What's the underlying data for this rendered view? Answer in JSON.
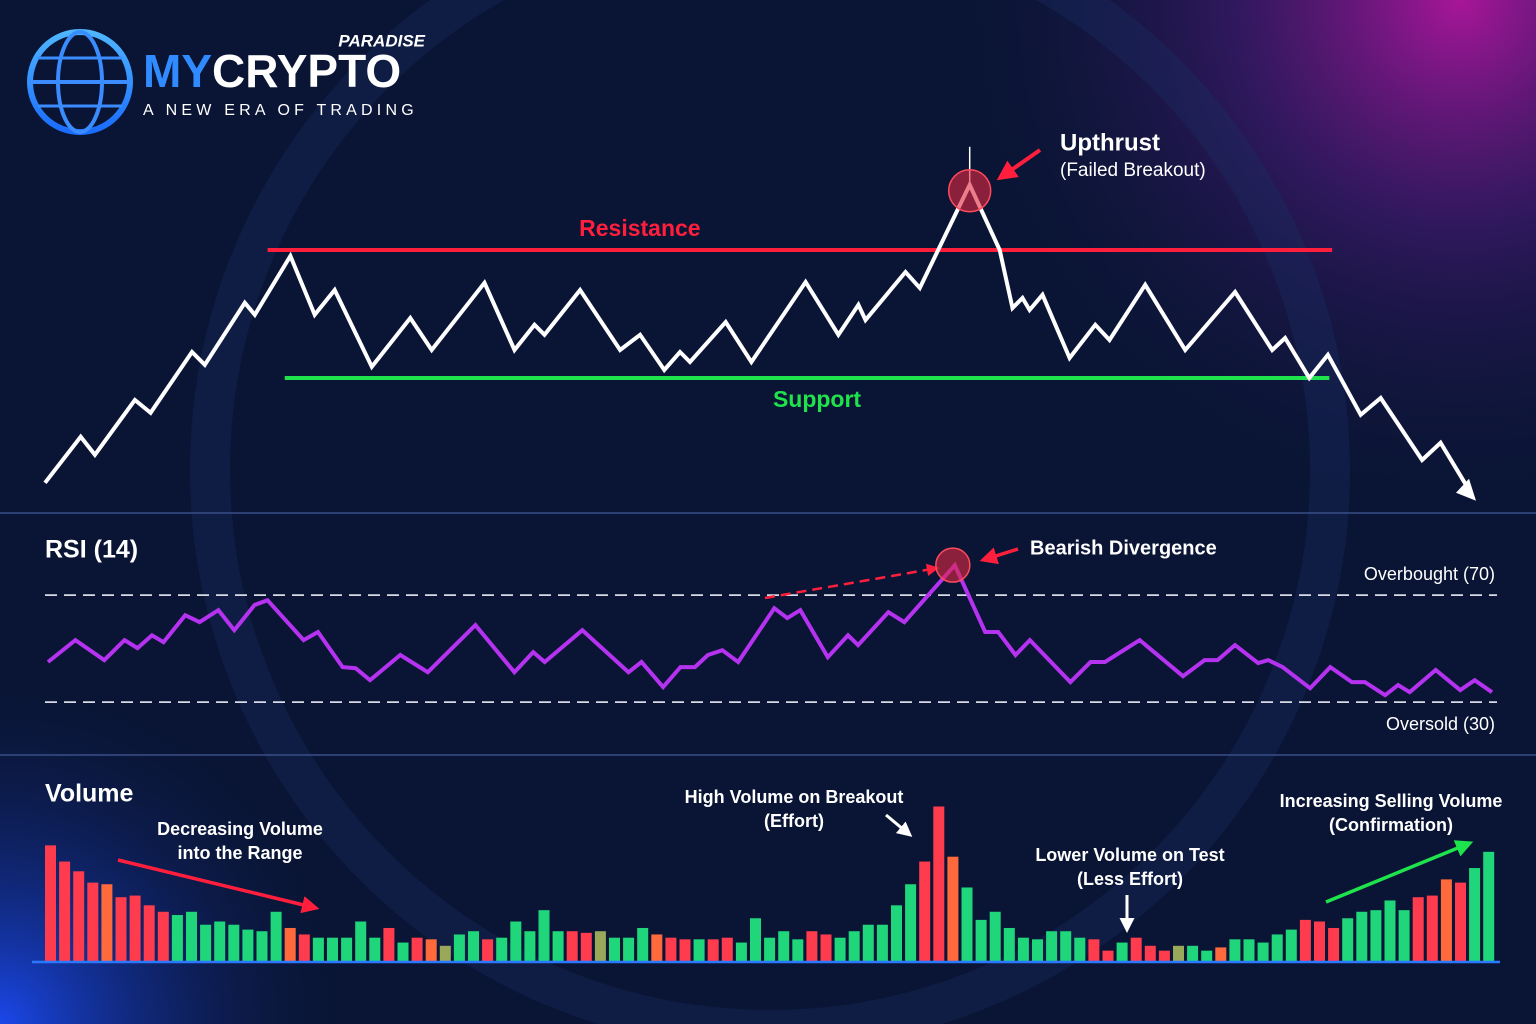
{
  "brand": {
    "tag": "PARADISE",
    "name_first": "MY",
    "name_second": "CRYPTO",
    "slogan": "A NEW ERA OF TRADING"
  },
  "chart_data": [
    {
      "type": "line",
      "color": "#ffffff",
      "xlim": [
        0,
        100
      ],
      "ylim": [
        0,
        100
      ],
      "x": [
        0,
        2.5,
        3.5,
        6.3,
        7.4,
        10.3,
        11.2,
        14,
        14.7,
        17.2,
        18.9,
        20.3,
        22.9,
        25.6,
        27.1,
        30.8,
        32.9,
        34.3,
        35,
        37.5,
        40.3,
        41.7,
        43.4,
        44.5,
        45.2,
        47.7,
        49.5,
        53.3,
        55.6,
        57,
        57.5,
        60.3,
        61.3,
        64.8,
        66.9,
        67.8,
        68.5,
        69,
        69.9,
        71.8,
        73.6,
        74.6,
        77.1,
        79.9,
        83.4,
        86,
        86.9,
        88.6,
        89.9,
        92.2,
        93.6,
        96.5,
        97.8,
        100
      ],
      "values": [
        9.3,
        20.8,
        16.3,
        30,
        26.8,
        42,
        38.8,
        54.3,
        51.3,
        66,
        51.3,
        57.5,
        38.3,
        50.5,
        42.5,
        59.3,
        42.5,
        48.8,
        46.3,
        57.5,
        42.5,
        46.3,
        37.5,
        42,
        39.5,
        49.5,
        39.5,
        59.5,
        46.3,
        53.8,
        50,
        62,
        58,
        83.8,
        67.5,
        53,
        55.5,
        52.5,
        56.3,
        40.5,
        48.8,
        45,
        58.8,
        42.5,
        57,
        42.5,
        45.5,
        35.5,
        41.3,
        26.3,
        30.5,
        15,
        19.3,
        6.3
      ],
      "levels": [
        {
          "label": "Resistance",
          "value": 67.5,
          "x": [
            15.6,
            90.2
          ],
          "color": "#ff1f3d"
        },
        {
          "label": "Support",
          "value": 35.5,
          "x": [
            16.8,
            90
          ],
          "color": "#1ee34c"
        }
      ],
      "annotation": {
        "title": "Upthrust",
        "subtitle": "(Failed Breakout)"
      }
    },
    {
      "type": "line",
      "title": "RSI (14)",
      "color": "#b532f0",
      "xlim": [
        0,
        100
      ],
      "ylim": [
        25,
        85
      ],
      "x": [
        0,
        1.9,
        3.9,
        5.3,
        6.2,
        7.2,
        8,
        9.5,
        10.5,
        11.8,
        12.9,
        14.3,
        15.2,
        17.7,
        18.7,
        20.4,
        21.3,
        22.3,
        24.4,
        26.3,
        29.6,
        32.3,
        33.6,
        34.4,
        37,
        40.2,
        41.1,
        42.6,
        43.8,
        44.8,
        45.7,
        46.7,
        47.8,
        50.3,
        51.2,
        52.1,
        54,
        55.4,
        56.1,
        58.2,
        59.3,
        62.8,
        64.9,
        65.8,
        67,
        68,
        70.8,
        72.2,
        73.2,
        75.6,
        78.6,
        80.1,
        81,
        82.2,
        83.8,
        84.5,
        85.5,
        87.4,
        88.8,
        90.3,
        91.2,
        92.6,
        93.5,
        94.3,
        96.1,
        97.8,
        98.8,
        100
      ],
      "values": [
        45,
        53.2,
        45.7,
        53.2,
        50.2,
        55,
        52.4,
        62.5,
        59.9,
        64.4,
        56.9,
        66.3,
        68.1,
        53.2,
        56.2,
        43.1,
        42.7,
        38.2,
        47.6,
        41.2,
        58.8,
        41.2,
        48.7,
        45,
        56.9,
        41.2,
        45,
        35.6,
        43.1,
        43.1,
        47.6,
        49.4,
        45,
        65.1,
        61.4,
        64.4,
        46.8,
        55,
        51.3,
        63.6,
        59.9,
        81.2,
        56.2,
        56.2,
        47.6,
        53.2,
        37.5,
        45,
        45,
        53.2,
        39.7,
        45.7,
        45.7,
        51.3,
        44.6,
        45.7,
        43.1,
        35.2,
        43.1,
        37.5,
        37.5,
        32.6,
        36.4,
        33.7,
        42,
        34.5,
        38.2,
        33.7
      ],
      "hlines": [
        {
          "value": 70,
          "label": "Overbought (70)"
        },
        {
          "value": 30,
          "label": "Oversold (30)"
        }
      ],
      "annotation": {
        "title": "Bearish Divergence"
      }
    },
    {
      "type": "bar",
      "title": "Volume",
      "ylim": [
        0,
        100
      ],
      "values": [
        72,
        62,
        56,
        49,
        48,
        40,
        41,
        35,
        31,
        29,
        31,
        23,
        25,
        23,
        20,
        19,
        31,
        21,
        17,
        15,
        15,
        15,
        25,
        15,
        21,
        12,
        15,
        14,
        10,
        17,
        19,
        14,
        15,
        25,
        19,
        32,
        19,
        19,
        18,
        19,
        15,
        15,
        21,
        17,
        15,
        14,
        14,
        14,
        15,
        12,
        27,
        15,
        19,
        14,
        19,
        17,
        15,
        19,
        23,
        23,
        35,
        48,
        62,
        96,
        65,
        46,
        26,
        31,
        21,
        15,
        14,
        19,
        19,
        15,
        14,
        7,
        12,
        15,
        10,
        7,
        10,
        10,
        7,
        9,
        14,
        14,
        12,
        17,
        20,
        26,
        25,
        21,
        27,
        31,
        32,
        38,
        32,
        40,
        41,
        51,
        49,
        58,
        68
      ],
      "colors": [
        "#ff3b4e",
        "#ff3b4e",
        "#ff3b4e",
        "#ff3b4e",
        "#ff6a3d",
        "#ff3b4e",
        "#ff3b4e",
        "#ff3b4e",
        "#ff3b4e",
        "#1fd67a",
        "#1fd67a",
        "#1fd67a",
        "#1fd67a",
        "#1fd67a",
        "#1fd67a",
        "#1fd67a",
        "#1fd67a",
        "#ff6a3d",
        "#ff3b4e",
        "#1fd67a",
        "#1fd67a",
        "#1fd67a",
        "#1fd67a",
        "#1fd67a",
        "#ff3b4e",
        "#1fd67a",
        "#ff3b4e",
        "#ff6a3d",
        "#9aa85a",
        "#1fd67a",
        "#1fd67a",
        "#ff3b4e",
        "#1fd67a",
        "#1fd67a",
        "#1fd67a",
        "#1fd67a",
        "#1fd67a",
        "#ff3b4e",
        "#ff3b4e",
        "#9aa85a",
        "#1fd67a",
        "#1fd67a",
        "#1fd67a",
        "#ff6a3d",
        "#ff3b4e",
        "#ff3b4e",
        "#1fd67a",
        "#ff3b4e",
        "#ff3b4e",
        "#1fd67a",
        "#1fd67a",
        "#1fd67a",
        "#1fd67a",
        "#1fd67a",
        "#ff3b4e",
        "#ff3b4e",
        "#1fd67a",
        "#1fd67a",
        "#1fd67a",
        "#1fd67a",
        "#1fd67a",
        "#1fd67a",
        "#ff3b4e",
        "#ff3b4e",
        "#ff6a3d",
        "#1fd67a",
        "#1fd67a",
        "#1fd67a",
        "#1fd67a",
        "#1fd67a",
        "#1fd67a",
        "#1fd67a",
        "#1fd67a",
        "#1fd67a",
        "#ff3b4e",
        "#ff3b4e",
        "#1fd67a",
        "#ff3b4e",
        "#ff3b4e",
        "#ff3b4e",
        "#9aa85a",
        "#1fd67a",
        "#1fd67a",
        "#ff6a3d",
        "#1fd67a",
        "#1fd67a",
        "#1fd67a",
        "#1fd67a",
        "#1fd67a",
        "#ff3b4e",
        "#ff3b4e",
        "#ff3b4e",
        "#1fd67a",
        "#1fd67a",
        "#1fd67a",
        "#1fd67a",
        "#1fd67a",
        "#ff3b4e",
        "#ff3b4e",
        "#ff6a3d",
        "#ff3b4e",
        "#1fd67a",
        "#1fd67a"
      ],
      "annotations": [
        {
          "lines": [
            "Decreasing Volume",
            "into the Range"
          ]
        },
        {
          "lines": [
            "High Volume on Breakout",
            "(Effort)"
          ]
        },
        {
          "lines": [
            "Lower Volume on Test",
            "(Less Effort)"
          ]
        },
        {
          "lines": [
            "Increasing Selling Volume",
            "(Confirmation)"
          ]
        }
      ]
    }
  ]
}
